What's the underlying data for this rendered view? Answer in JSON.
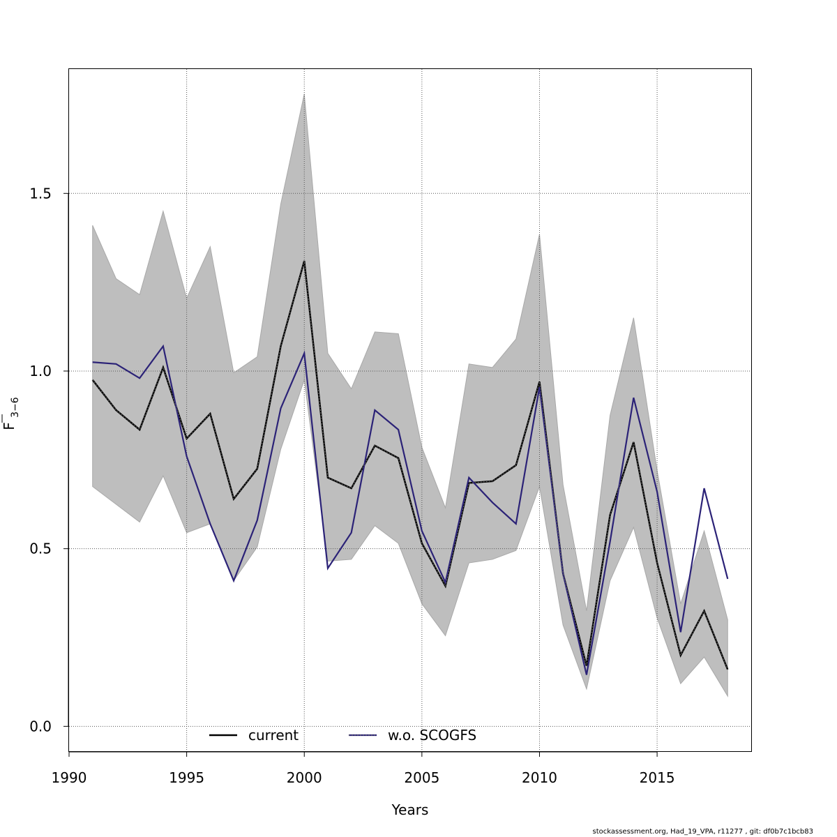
{
  "chart_data": {
    "type": "line",
    "xlabel": "Years",
    "ylabel": {
      "main": "F",
      "subscript": "3−6",
      "overline": true
    },
    "xlim": [
      1990,
      2019
    ],
    "ylim": [
      -0.07,
      1.85
    ],
    "xticks": [
      1990,
      1995,
      2000,
      2005,
      2010,
      2015
    ],
    "yticks": [
      0.0,
      0.5,
      1.0,
      1.5
    ],
    "ytick_labels": [
      "0.0",
      "0.5",
      "1.0",
      "1.5"
    ],
    "grid": true,
    "legend_position": "bottom",
    "x": [
      1991,
      1992,
      1993,
      1994,
      1995,
      1996,
      1997,
      1998,
      1999,
      2000,
      2001,
      2002,
      2003,
      2004,
      2005,
      2006,
      2007,
      2008,
      2009,
      2010,
      2011,
      2012,
      2013,
      2014,
      2015,
      2016,
      2017,
      2018
    ],
    "series": [
      {
        "name": "current",
        "color": "#000000",
        "values": [
          0.975,
          0.89,
          0.835,
          1.01,
          0.81,
          0.88,
          0.64,
          0.725,
          1.07,
          1.31,
          0.7,
          0.67,
          0.79,
          0.755,
          0.515,
          0.395,
          0.685,
          0.69,
          0.735,
          0.97,
          0.43,
          0.17,
          0.595,
          0.8,
          0.46,
          0.2,
          0.325,
          0.16
        ]
      },
      {
        "name": "w.o. SCOGFS",
        "color": "#2b2277",
        "values": [
          1.025,
          1.02,
          0.98,
          1.07,
          0.76,
          0.57,
          0.41,
          0.58,
          0.895,
          1.05,
          0.445,
          0.545,
          0.89,
          0.835,
          0.55,
          0.405,
          0.7,
          0.63,
          0.57,
          0.955,
          0.43,
          0.145,
          0.52,
          0.925,
          0.66,
          0.265,
          0.67,
          0.415
        ]
      }
    ],
    "band": {
      "color": "#bebebe",
      "lower": [
        0.675,
        0.625,
        0.575,
        0.705,
        0.545,
        0.57,
        0.41,
        0.505,
        0.78,
        0.975,
        0.465,
        0.47,
        0.565,
        0.515,
        0.345,
        0.255,
        0.46,
        0.47,
        0.495,
        0.675,
        0.285,
        0.105,
        0.41,
        0.56,
        0.305,
        0.12,
        0.195,
        0.085
      ],
      "upper": [
        1.41,
        1.26,
        1.215,
        1.45,
        1.205,
        1.35,
        0.995,
        1.04,
        1.47,
        1.78,
        1.05,
        0.95,
        1.11,
        1.105,
        0.785,
        0.615,
        1.02,
        1.01,
        1.09,
        1.385,
        0.68,
        0.325,
        0.875,
        1.15,
        0.72,
        0.345,
        0.55,
        0.3
      ]
    }
  },
  "footer_text": "stockassessment.org, Had_19_VPA, r11277 , git: df0b7c1bcb83"
}
